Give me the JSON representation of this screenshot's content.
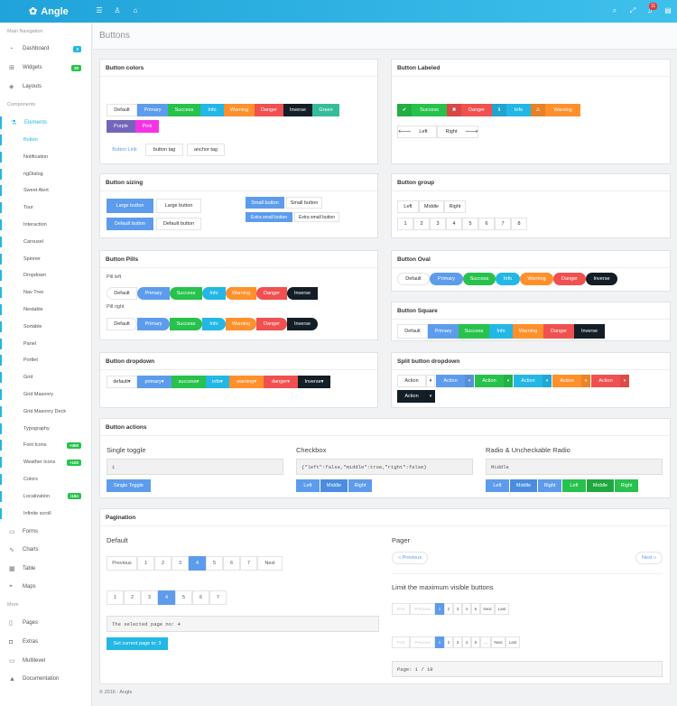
{
  "app": {
    "brand": "Angle",
    "notifications": "11",
    "page_title": "Buttons",
    "footer": "© 2016 - Angle"
  },
  "topbar": {
    "icons": [
      "menu-icon",
      "user-icon",
      "lock-icon",
      "search-icon",
      "expand-icon",
      "bell-icon"
    ]
  },
  "sidebar": {
    "main_nav_heading": "Main Navigation",
    "main_items": [
      {
        "label": "Dashboard",
        "icon": "speedometer-icon",
        "badge": "3",
        "badge_color": "#23b7e5"
      },
      {
        "label": "Widgets",
        "icon": "grid-icon",
        "badge": "30",
        "badge_color": "#27c24c"
      },
      {
        "label": "Layouts",
        "icon": "layers-icon"
      }
    ],
    "components_heading": "Components",
    "elements_label": "Elements",
    "sub_items": [
      {
        "label": "Button"
      },
      {
        "label": "Notification"
      },
      {
        "label": "ngDialog"
      },
      {
        "label": "Sweet Alert"
      },
      {
        "label": "Tour"
      },
      {
        "label": "Interaction"
      },
      {
        "label": "Carousel"
      },
      {
        "label": "Spinner"
      },
      {
        "label": "Dropdown"
      },
      {
        "label": "Nav Tree"
      },
      {
        "label": "Nestable"
      },
      {
        "label": "Sortable"
      },
      {
        "label": "Panel"
      },
      {
        "label": "Portlet"
      },
      {
        "label": "Grid"
      },
      {
        "label": "Grid Masonry"
      },
      {
        "label": "Grid Masonry Deck"
      },
      {
        "label": "Typography"
      },
      {
        "label": "Font Icons",
        "badge": "+400",
        "badge_color": "#27c24c"
      },
      {
        "label": "Weather Icons",
        "badge": "+100",
        "badge_color": "#27c24c"
      },
      {
        "label": "Colors"
      },
      {
        "label": "Localization",
        "badge": "i18n",
        "badge_color": "#27c24c"
      },
      {
        "label": "Infinite scroll"
      }
    ],
    "comp_items": [
      {
        "label": "Forms",
        "icon": "note-icon"
      },
      {
        "label": "Charts",
        "icon": "chart-icon"
      },
      {
        "label": "Table",
        "icon": "table-icon"
      },
      {
        "label": "Maps",
        "icon": "map-icon"
      }
    ],
    "more_heading": "More",
    "more_items": [
      {
        "label": "Pages",
        "icon": "doc-icon"
      },
      {
        "label": "Extras",
        "icon": "cup-icon"
      },
      {
        "label": "Multilevel",
        "icon": "folder-icon"
      },
      {
        "label": "Documentation",
        "icon": "graduation-icon"
      }
    ]
  },
  "panels": {
    "colors": {
      "title": "Button colors",
      "row1": [
        "Default",
        "Primary",
        "Success",
        "Info",
        "Warning",
        "Danger",
        "Inverse",
        "Green"
      ],
      "row2": [
        "Purple",
        "Pink"
      ],
      "row3": [
        "Button Link",
        "button tag",
        "anchor tag"
      ]
    },
    "labeled": {
      "title": "Button Labeled",
      "row1": [
        "Success",
        "Danger",
        "Info",
        "Warning"
      ],
      "row2": [
        "Left",
        "Right"
      ]
    },
    "sizing": {
      "title": "Button sizing",
      "labels": [
        "Large button",
        "Large button",
        "Default button",
        "Default button",
        "Small button",
        "Small button",
        "Extra small button",
        "Extra small button"
      ]
    },
    "group": {
      "title": "Button group",
      "row1": [
        "Left",
        "Middle",
        "Right"
      ],
      "row2": [
        "1",
        "2",
        "3",
        "4",
        "5",
        "6",
        "7",
        "8"
      ]
    },
    "pills": {
      "title": "Button Pills",
      "left_label": "Pill left",
      "right_label": "Pill right",
      "buttons": [
        "Default",
        "Primary",
        "Success",
        "Info",
        "Warning",
        "Danger",
        "Inverse"
      ]
    },
    "oval": {
      "title": "Button Oval",
      "buttons": [
        "Default",
        "Primary",
        "Success",
        "Info",
        "Warning",
        "Danger",
        "Inverse"
      ]
    },
    "square": {
      "title": "Button Square",
      "buttons": [
        "Default",
        "Primary",
        "Success",
        "Info",
        "Warning",
        "Danger",
        "Inverse"
      ]
    },
    "dropdown": {
      "title": "Button dropdown",
      "buttons": [
        "default",
        "primary",
        "success",
        "info",
        "warning",
        "danger",
        "Inverse"
      ]
    },
    "split": {
      "title": "Split button dropdown",
      "buttons": [
        "Action",
        "Action",
        "Action",
        "Action",
        "Action",
        "Action",
        "Action"
      ]
    },
    "actions": {
      "title": "Button actions",
      "toggle_h": "Single toggle",
      "toggle_val": "1",
      "toggle_btn": "Single Toggle",
      "checkbox_h": "Checkbox",
      "checkbox_val": "{\"left\":false,\"middle\":true,\"right\":false}",
      "checkbox_btns": [
        "Left",
        "Middle",
        "Right"
      ],
      "radio_h": "Radio & Uncheckable Radio",
      "radio_val": "Middle",
      "radio_btns": [
        "Left",
        "Middle",
        "Right",
        "Left",
        "Middle",
        "Right"
      ]
    },
    "pagination": {
      "title": "Pagination",
      "default_h": "Default",
      "pages1": [
        "Previous",
        "1",
        "2",
        "3",
        "4",
        "5",
        "6",
        "7",
        "Next"
      ],
      "pages2": [
        "1",
        "2",
        "3",
        "4",
        "5",
        "6",
        "7"
      ],
      "selected_text": "The selected page no: 4",
      "set_btn": "Set current page to: 3",
      "pager_h": "Pager",
      "prev": "« Previous",
      "next": "Next »",
      "limit_h": "Limit the maximum visible buttons",
      "lim1": [
        "First",
        "Previous",
        "1",
        "2",
        "3",
        "4",
        "5",
        "Next",
        "Last"
      ],
      "lim2": [
        "First",
        "Previous",
        "1",
        "2",
        "3",
        "4",
        "5",
        "...",
        "Next",
        "Last"
      ],
      "page_info": "Page: 1 / 18"
    }
  }
}
